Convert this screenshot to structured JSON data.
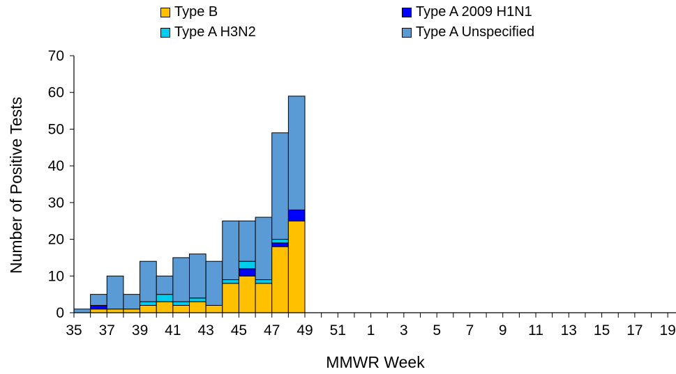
{
  "chart_data": {
    "type": "bar",
    "stacked": true,
    "xlabel": "MMWR Week",
    "ylabel": "Number of Positive Tests",
    "ylim": [
      0,
      70
    ],
    "yticks": [
      0,
      10,
      20,
      30,
      40,
      50,
      60,
      70
    ],
    "categories": [
      "35",
      "36",
      "37",
      "38",
      "39",
      "40",
      "41",
      "42",
      "43",
      "44",
      "45",
      "46",
      "47",
      "48",
      "49",
      "50",
      "51",
      "52",
      "1",
      "2",
      "3",
      "4",
      "5",
      "6",
      "7",
      "8",
      "9",
      "10",
      "11",
      "12",
      "13",
      "14",
      "15",
      "16",
      "17",
      "18",
      "19"
    ],
    "tick_labels": [
      "35",
      "37",
      "39",
      "41",
      "43",
      "45",
      "47",
      "49",
      "51",
      "1",
      "3",
      "5",
      "7",
      "9",
      "11",
      "13",
      "15",
      "17",
      "19"
    ],
    "series": [
      {
        "name": "Type B",
        "color": "#ffc000",
        "values": [
          0,
          1,
          1,
          1,
          2,
          3,
          2,
          3,
          2,
          8,
          10,
          8,
          18,
          25,
          0,
          0,
          0,
          0,
          0,
          0,
          0,
          0,
          0,
          0,
          0,
          0,
          0,
          0,
          0,
          0,
          0,
          0,
          0,
          0,
          0,
          0,
          0
        ]
      },
      {
        "name": "Type A 2009 H1N1",
        "color": "#0000ff",
        "values": [
          0,
          1,
          0,
          0,
          0,
          0,
          0,
          0,
          0,
          0,
          2,
          0,
          1,
          3,
          0,
          0,
          0,
          0,
          0,
          0,
          0,
          0,
          0,
          0,
          0,
          0,
          0,
          0,
          0,
          0,
          0,
          0,
          0,
          0,
          0,
          0,
          0
        ]
      },
      {
        "name": "Type A H3N2",
        "color": "#00ccee",
        "values": [
          0,
          0,
          0,
          0,
          1,
          2,
          1,
          1,
          0,
          1,
          2,
          1,
          1,
          0,
          0,
          0,
          0,
          0,
          0,
          0,
          0,
          0,
          0,
          0,
          0,
          0,
          0,
          0,
          0,
          0,
          0,
          0,
          0,
          0,
          0,
          0,
          0
        ]
      },
      {
        "name": "Type A Unspecified",
        "color": "#5b9bd5",
        "values": [
          1,
          3,
          9,
          4,
          11,
          5,
          12,
          12,
          12,
          16,
          11,
          17,
          29,
          31,
          0,
          0,
          0,
          0,
          0,
          0,
          0,
          0,
          0,
          0,
          0,
          0,
          0,
          0,
          0,
          0,
          0,
          0,
          0,
          0,
          0,
          0,
          0
        ]
      }
    ],
    "legend_order": [
      0,
      1,
      2,
      3
    ],
    "legend_position": "top",
    "grid": false
  }
}
